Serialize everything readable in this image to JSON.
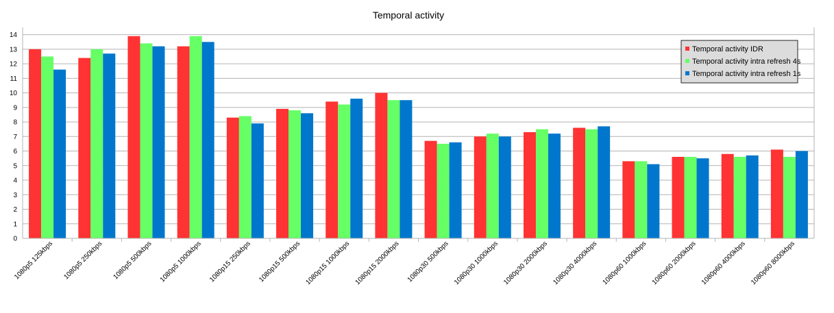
{
  "chart_data": {
    "type": "bar",
    "title": "Temporal activity",
    "xlabel": "",
    "ylabel": "",
    "ylim": [
      0,
      14.5
    ],
    "yticks": [
      0,
      1,
      2,
      3,
      4,
      5,
      6,
      7,
      8,
      9,
      10,
      11,
      12,
      13,
      14
    ],
    "grid": true,
    "legend_position": "top-right",
    "categories": [
      "1080p5 125kbps",
      "1080p5 250kbps",
      "1080p5 500kbps",
      "1080p5 1000kbps",
      "1080p15 250kbps",
      "1080p15 500kbps",
      "1080p15 1000kbps",
      "1080p15 2000kbps",
      "1080p30 500kbps",
      "1080p30 1000kbps",
      "1080p30 2000kbps",
      "1080p30 4000kbps",
      "1080p60 1000kbps",
      "1080p60 2000kbps",
      "1080p60 4000kbps",
      "1080p60 8000kbps"
    ],
    "series": [
      {
        "name": "Temporal activity IDR",
        "color": "#ff3333",
        "values": [
          13.0,
          12.4,
          13.9,
          13.2,
          8.3,
          8.9,
          9.4,
          10.0,
          6.7,
          7.0,
          7.3,
          7.6,
          5.3,
          5.6,
          5.8,
          6.1
        ]
      },
      {
        "name": "Temporal activity intra refresh 4s",
        "color": "#66ff66",
        "values": [
          12.5,
          13.0,
          13.4,
          13.9,
          8.4,
          8.8,
          9.2,
          9.5,
          6.5,
          7.2,
          7.5,
          7.5,
          5.3,
          5.6,
          5.6,
          5.6
        ]
      },
      {
        "name": "Temporal activity intra refresh 1s",
        "color": "#0077cc",
        "values": [
          11.6,
          12.7,
          13.2,
          13.5,
          7.9,
          8.6,
          9.6,
          9.5,
          6.6,
          7.0,
          7.2,
          7.7,
          5.1,
          5.5,
          5.7,
          6.0
        ]
      }
    ]
  }
}
